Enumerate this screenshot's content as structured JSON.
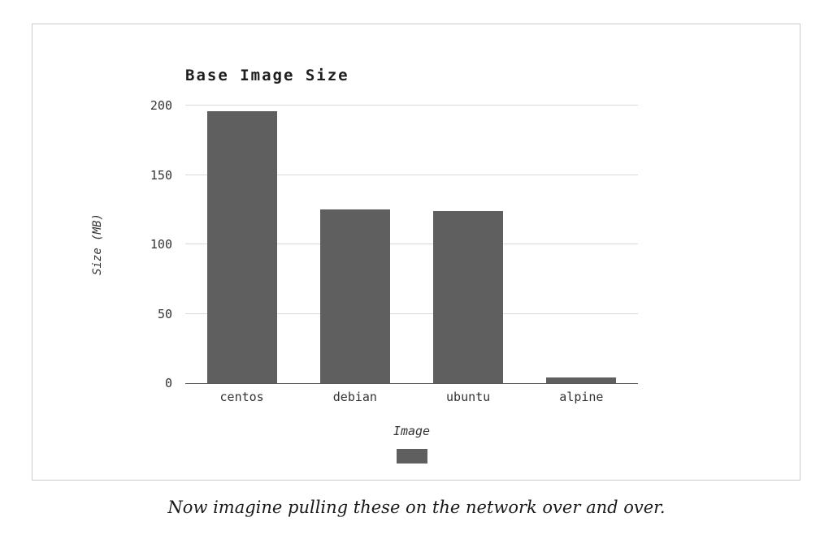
{
  "caption": "Now imagine pulling these on the network over and over.",
  "chart_data": {
    "type": "bar",
    "title": "Base Image Size",
    "categories": [
      "centos",
      "debian",
      "ubuntu",
      "alpine"
    ],
    "values": [
      196,
      125,
      124,
      4
    ],
    "xlabel": "Image",
    "ylabel": "Size (MB)",
    "ylim": [
      0,
      200
    ],
    "yticks": [
      0,
      50,
      100,
      150,
      200
    ],
    "bar_color": "#5f5f5f",
    "gridline_color": "#d9d9d9",
    "grid": true,
    "legend_position": "bottom"
  }
}
